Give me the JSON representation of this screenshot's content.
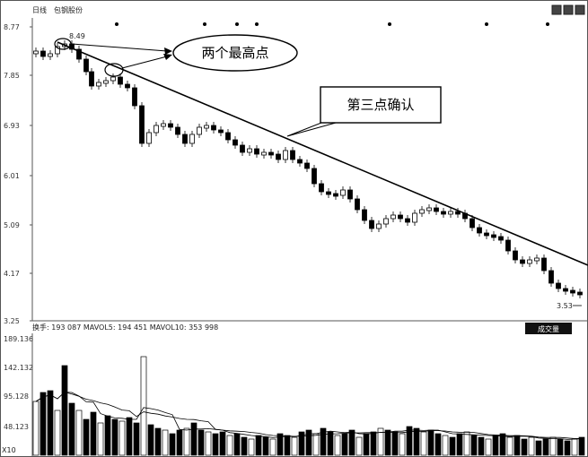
{
  "header": {
    "period": "日线",
    "stock": "包钢股份",
    "ctrl_a": "▲",
    "ctrl_b": "■"
  },
  "price_axis": [
    "8.77",
    "7.85",
    "6.93",
    "6.01",
    "5.09",
    "4.17",
    "3.25"
  ],
  "labels": {
    "high_value": "8.49",
    "low_value": "3.53",
    "annotation_two_highs": "两个最高点",
    "annotation_third_point": "第三点确认"
  },
  "volume": {
    "title": "换手: 193 087  MAVOL5: 194 451  MAVOL10: 353 998",
    "button": "成交量",
    "axis": [
      "189.136",
      "142.132",
      "95.128",
      "48.123"
    ],
    "corner": "X10"
  },
  "colors": {
    "up": "#ffffff",
    "down": "#000000",
    "trendline": "#000000"
  },
  "chart_data": {
    "type": "candlestick",
    "ylim": [
      3.25,
      8.77
    ],
    "x": [],
    "values": []
  }
}
